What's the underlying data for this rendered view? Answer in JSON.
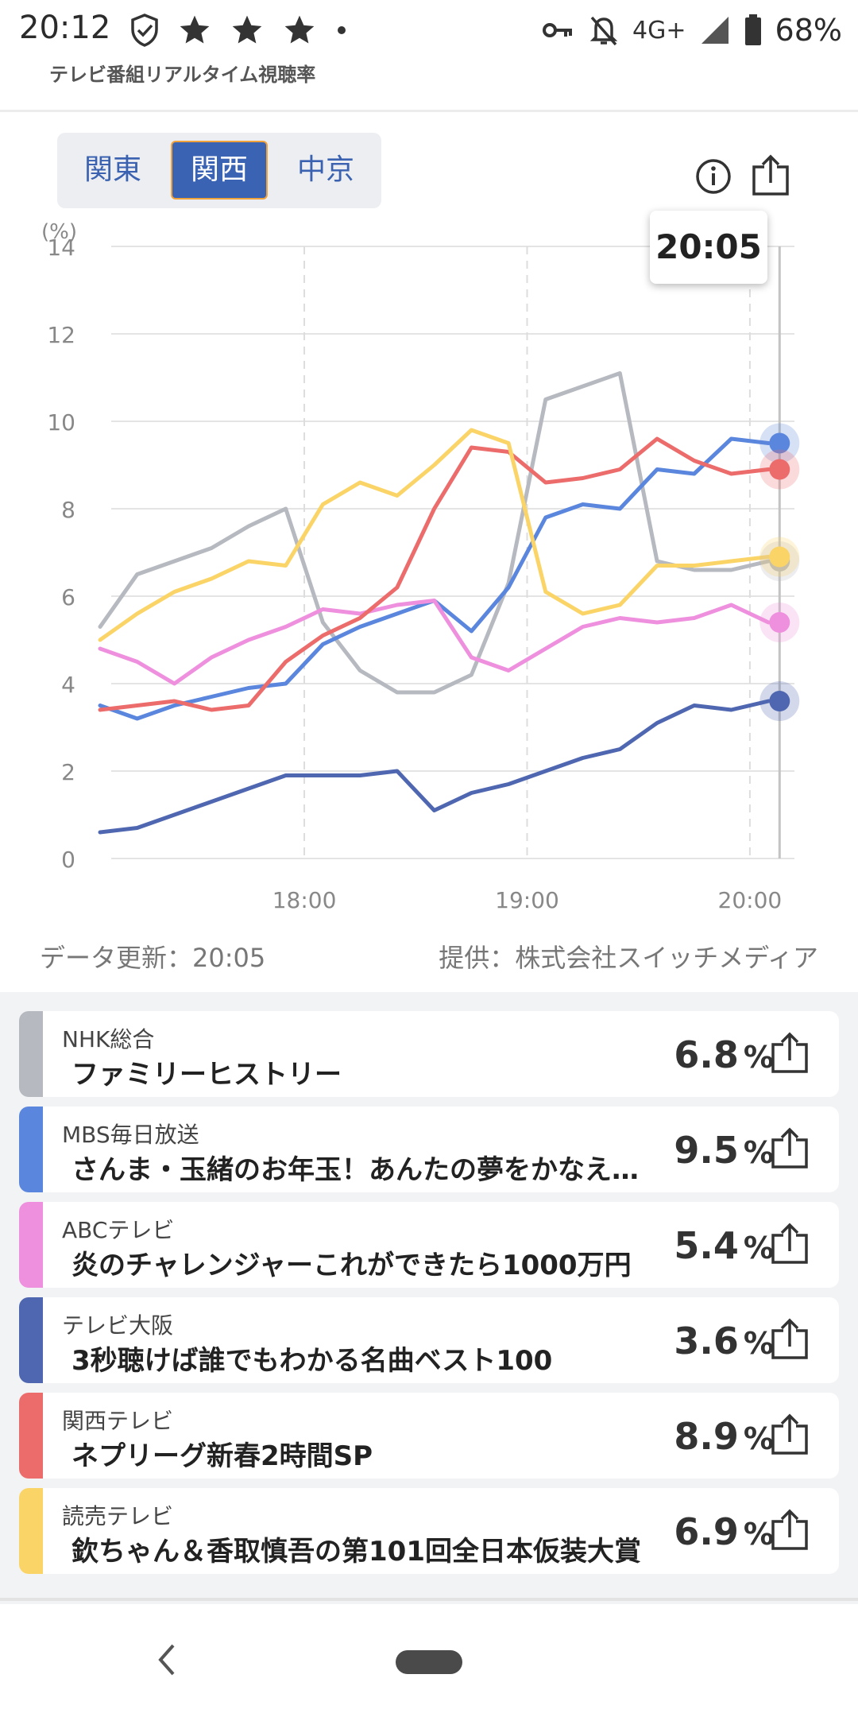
{
  "status_bar": {
    "time": "20:12",
    "left_icons": [
      "shield-check-icon",
      "star-icon",
      "star-icon",
      "star-icon",
      "dot-icon"
    ],
    "network": "4G+",
    "battery": "68%"
  },
  "app": {
    "title": "テレビ番組リアルタイム視聴率"
  },
  "region_tabs": [
    {
      "label": "関東",
      "active": false
    },
    {
      "label": "関西",
      "active": true
    },
    {
      "label": "中京",
      "active": false
    }
  ],
  "tooltip": {
    "time": "20:05"
  },
  "chart_data": {
    "type": "line",
    "ylabel": "(%)",
    "ylim": [
      0,
      14
    ],
    "yticks": [
      "14",
      "12",
      "10",
      "8",
      "6",
      "4",
      "2",
      "0"
    ],
    "xlim": [
      "17:08",
      "20:12"
    ],
    "xticks": [
      "18:00",
      "19:00",
      "20:00"
    ],
    "grid": true,
    "x": [
      "17:05",
      "17:15",
      "17:25",
      "17:35",
      "17:45",
      "17:55",
      "18:05",
      "18:15",
      "18:25",
      "18:35",
      "18:45",
      "18:55",
      "19:05",
      "19:15",
      "19:25",
      "19:35",
      "19:45",
      "19:55",
      "20:05"
    ],
    "series": [
      {
        "name": "NHK総合",
        "color": "#b6b9bf",
        "values": [
          5.3,
          6.5,
          6.8,
          7.1,
          7.6,
          8.0,
          5.4,
          4.3,
          3.8,
          3.8,
          4.2,
          6.3,
          10.5,
          10.8,
          11.1,
          6.8,
          6.6,
          6.6,
          6.8
        ]
      },
      {
        "name": "MBS毎日放送",
        "color": "#5b86dd",
        "values": [
          3.5,
          3.2,
          3.5,
          3.7,
          3.9,
          4.0,
          4.9,
          5.3,
          5.6,
          5.9,
          5.2,
          6.2,
          7.8,
          8.1,
          8.0,
          8.9,
          8.8,
          9.6,
          9.5
        ]
      },
      {
        "name": "ABCテレビ",
        "color": "#ee90dd",
        "values": [
          4.8,
          4.5,
          4.0,
          4.6,
          5.0,
          5.3,
          5.7,
          5.6,
          5.8,
          5.9,
          4.6,
          4.3,
          4.8,
          5.3,
          5.5,
          5.4,
          5.5,
          5.8,
          5.4
        ]
      },
      {
        "name": "テレビ大阪",
        "color": "#4f67b0",
        "values": [
          0.6,
          0.7,
          1.0,
          1.3,
          1.6,
          1.9,
          1.9,
          1.9,
          2.0,
          1.1,
          1.5,
          1.7,
          2.0,
          2.3,
          2.5,
          3.1,
          3.5,
          3.4,
          3.6
        ]
      },
      {
        "name": "関西テレビ",
        "color": "#ec6b6b",
        "values": [
          3.4,
          3.5,
          3.6,
          3.4,
          3.5,
          4.5,
          5.1,
          5.5,
          6.2,
          8.0,
          9.4,
          9.3,
          8.6,
          8.7,
          8.9,
          9.6,
          9.1,
          8.8,
          8.9
        ]
      },
      {
        "name": "読売テレビ",
        "color": "#fbd468",
        "values": [
          5.0,
          5.6,
          6.1,
          6.4,
          6.8,
          6.7,
          8.1,
          8.6,
          8.3,
          9.0,
          9.8,
          9.5,
          6.1,
          5.6,
          5.8,
          6.7,
          6.7,
          6.8,
          6.9
        ]
      }
    ]
  },
  "chart_footer": {
    "updated": "データ更新：20:05",
    "provider": "提供：株式会社スイッチメディア"
  },
  "channels": [
    {
      "station": "NHK総合",
      "program": "ファミリーヒストリー",
      "rating": "6.8",
      "unit": "%",
      "color": "#b6b9bf"
    },
    {
      "station": "MBS毎日放送",
      "program": "さんま・玉緒のお年玉！あんたの夢をかなえたろかSP",
      "rating": "9.5",
      "unit": "%",
      "color": "#5b86dd"
    },
    {
      "station": "ABCテレビ",
      "program": "炎のチャレンジャーこれができたら1000万円",
      "rating": "5.4",
      "unit": "%",
      "color": "#ee90dd"
    },
    {
      "station": "テレビ大阪",
      "program": "3秒聴けば誰でもわかる名曲ベスト100",
      "rating": "3.6",
      "unit": "%",
      "color": "#4f67b0"
    },
    {
      "station": "関西テレビ",
      "program": "ネプリーグ新春2時間SP",
      "rating": "8.9",
      "unit": "%",
      "color": "#ec6b6b"
    },
    {
      "station": "読売テレビ",
      "program": "欽ちゃん＆香取慎吾の第101回全日本仮装大賞",
      "rating": "6.9",
      "unit": "%",
      "color": "#fbd468"
    }
  ]
}
